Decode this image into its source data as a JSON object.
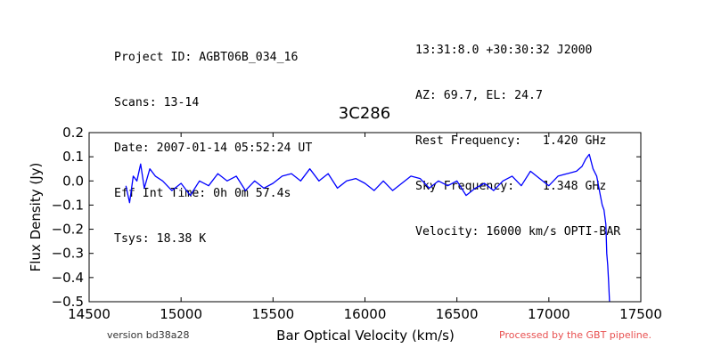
{
  "header_left": [
    "Project ID: AGBT06B_034_16",
    "Scans: 13-14",
    "Date: 2007-01-14 05:52:24 UT",
    "Eff Int Time: 0h 0m 57.4s",
    "Tsys: 18.38 K"
  ],
  "header_right": [
    "13:31:8.0 +30:30:32 J2000",
    "AZ: 69.7, EL: 24.7",
    "Rest Frequency:   1.420 GHz",
    "Sky Frequency:    1.348 GHz",
    "Velocity: 16000 km/s OPTI-BAR"
  ],
  "footer": {
    "version": "version bd38a28",
    "processed": "Processed by the GBT pipeline.",
    "processed_color": "#e85050"
  },
  "chart_data": {
    "type": "line",
    "title": "3C286",
    "xlabel": "Bar Optical Velocity (km/s)",
    "ylabel": "Flux Density (Jy)",
    "xlim": [
      14500,
      17500
    ],
    "ylim": [
      -0.5,
      0.2
    ],
    "xticks": [
      "14500",
      "15000",
      "15500",
      "16000",
      "16500",
      "17000",
      "17500"
    ],
    "yticks": [
      "0.2",
      "0.1",
      "0.0",
      "−0.1",
      "−0.2",
      "−0.3",
      "−0.4",
      "−0.5"
    ],
    "grid": false,
    "series_color": "#0000ff",
    "series": [
      {
        "x": [
          14700,
          14720,
          14740,
          14760,
          14780,
          14800,
          14830,
          14860,
          14900,
          14950,
          15000,
          15050,
          15100,
          15150,
          15200,
          15250,
          15300,
          15350,
          15400,
          15450,
          15500,
          15550,
          15600,
          15650,
          15700,
          15750,
          15800,
          15850,
          15900,
          15950,
          16000,
          16050,
          16100,
          16150,
          16200,
          16250,
          16300,
          16350,
          16400,
          16450,
          16500,
          16550,
          16600,
          16650,
          16700,
          16750,
          16800,
          16850,
          16900,
          16950,
          17000,
          17050,
          17100,
          17150,
          17180,
          17200,
          17220,
          17240,
          17260,
          17280,
          17290,
          17300,
          17310,
          17315,
          17320,
          17325,
          17330
        ],
        "y": [
          -0.02,
          -0.09,
          0.02,
          0.0,
          0.07,
          -0.03,
          0.05,
          0.02,
          0.0,
          -0.04,
          -0.01,
          -0.06,
          0.0,
          -0.02,
          0.03,
          0.0,
          0.02,
          -0.04,
          0.0,
          -0.03,
          -0.01,
          0.02,
          0.03,
          0.0,
          0.05,
          0.0,
          0.03,
          -0.03,
          0.0,
          0.01,
          -0.01,
          -0.04,
          0.0,
          -0.04,
          -0.01,
          0.02,
          0.01,
          -0.03,
          0.0,
          -0.02,
          0.0,
          -0.06,
          -0.03,
          -0.01,
          -0.04,
          0.0,
          0.02,
          -0.02,
          0.04,
          0.01,
          -0.02,
          0.02,
          0.03,
          0.04,
          0.06,
          0.09,
          0.11,
          0.05,
          0.02,
          -0.06,
          -0.1,
          -0.12,
          -0.18,
          -0.3,
          -0.35,
          -0.42,
          -0.5
        ]
      }
    ]
  }
}
